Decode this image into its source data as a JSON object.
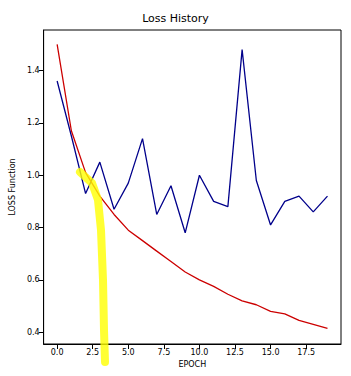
{
  "chart_data": {
    "type": "line",
    "title": "Loss History",
    "x_label": "EPOCH",
    "y_label": "LOSS Function",
    "x": [
      0,
      1,
      2,
      3,
      4,
      5,
      6,
      7,
      8,
      9,
      10,
      11,
      12,
      13,
      14,
      15,
      16,
      17,
      18,
      19
    ],
    "series": [
      {
        "color": "#00008b",
        "values": [
          1.36,
          1.15,
          0.93,
          1.05,
          0.87,
          0.97,
          1.14,
          0.85,
          0.96,
          0.78,
          1.0,
          0.9,
          0.88,
          1.48,
          0.98,
          0.81,
          0.9,
          0.92,
          0.86,
          0.92
        ]
      },
      {
        "color": "#cc0000",
        "values": [
          1.5,
          1.17,
          1.01,
          0.92,
          0.85,
          0.79,
          0.75,
          0.71,
          0.67,
          0.63,
          0.6,
          0.575,
          0.545,
          0.52,
          0.505,
          0.48,
          0.47,
          0.445,
          0.43,
          0.415
        ]
      }
    ],
    "xlim": [
      -0.95,
      19.95
    ],
    "xticks": [
      {
        "value": 0,
        "label": "0.0"
      },
      {
        "value": 2.5,
        "label": "2.5"
      },
      {
        "value": 5,
        "label": "5.0"
      },
      {
        "value": 7.5,
        "label": "7.5"
      },
      {
        "value": 10,
        "label": "10.0"
      },
      {
        "value": 12.5,
        "label": "12.5"
      },
      {
        "value": 15,
        "label": "15.0"
      },
      {
        "value": 17.5,
        "label": "17.5"
      }
    ],
    "ylim": [
      0.355,
      1.555
    ],
    "yticks": [
      0.4,
      0.6,
      0.8,
      {
        "value": 1,
        "label": "1.0"
      },
      1.2,
      1.4
    ],
    "grid": false
  }
}
